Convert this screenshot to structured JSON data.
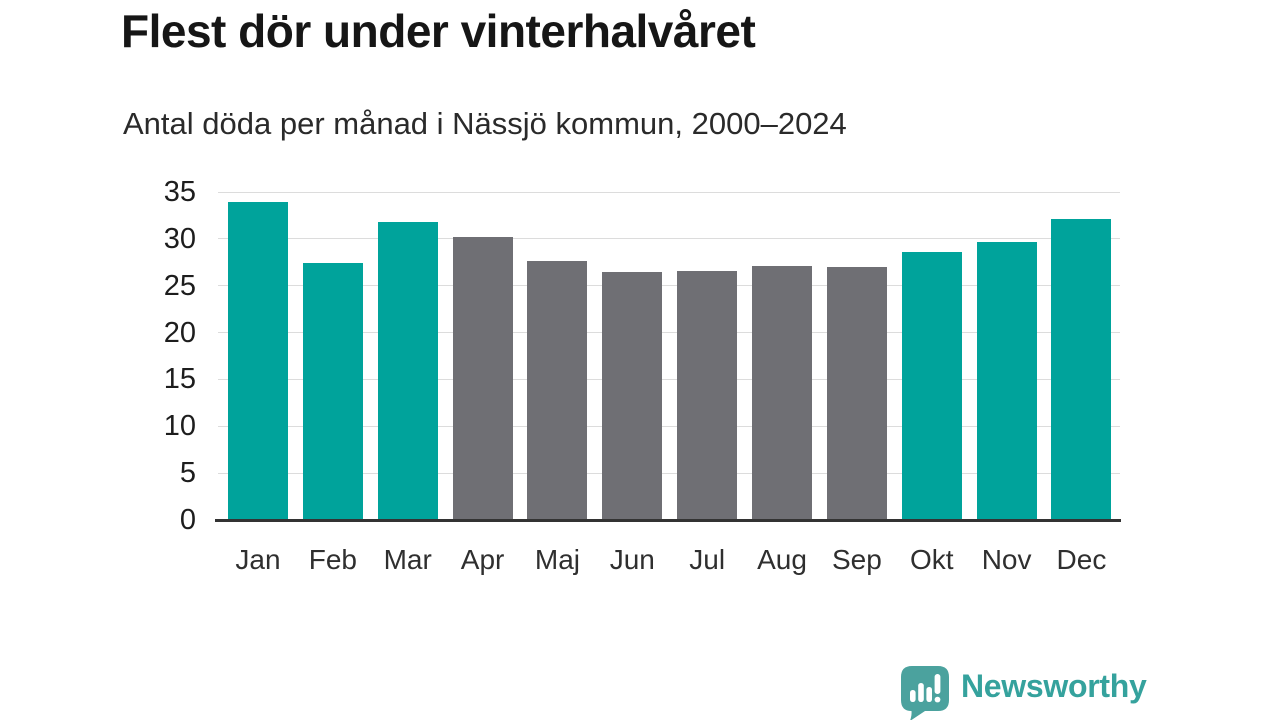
{
  "title": "Flest dör under vinterhalvåret",
  "subtitle": "Antal döda per månad i Nässjö kommun, 2000–2024",
  "chart_data": {
    "type": "bar",
    "title": "Flest dör under vinterhalvåret",
    "subtitle": "Antal döda per månad i Nässjö kommun, 2000–2024",
    "categories": [
      "Jan",
      "Feb",
      "Mar",
      "Apr",
      "Maj",
      "Jun",
      "Jul",
      "Aug",
      "Sep",
      "Okt",
      "Nov",
      "Dec"
    ],
    "values": [
      33.8,
      27.3,
      31.7,
      30.1,
      27.5,
      26.4,
      26.5,
      27.0,
      26.9,
      28.5,
      29.6,
      32.0
    ],
    "highlight_months": [
      "Jan",
      "Feb",
      "Mar",
      "Okt",
      "Nov",
      "Dec"
    ],
    "highlight_color": "#00a39b",
    "base_color": "#6f6f74",
    "xlabel": "",
    "ylabel": "",
    "ylim": [
      0,
      35
    ],
    "yticks": [
      0,
      5,
      10,
      15,
      20,
      25,
      30,
      35
    ],
    "grid": true,
    "legend": false
  },
  "colors": {
    "teal_bar": "#00a39b",
    "gray_bar": "#6f6f74",
    "gridline": "#dcdcdc",
    "axis": "#333333",
    "title_text": "#161616",
    "brand_teal": "#35a29d",
    "logo_mark_teal": "#4ba29e"
  },
  "footer": {
    "brand": "Newsworthy",
    "logo_icon": "newsworthy-speech-bubble-chart-icon"
  }
}
